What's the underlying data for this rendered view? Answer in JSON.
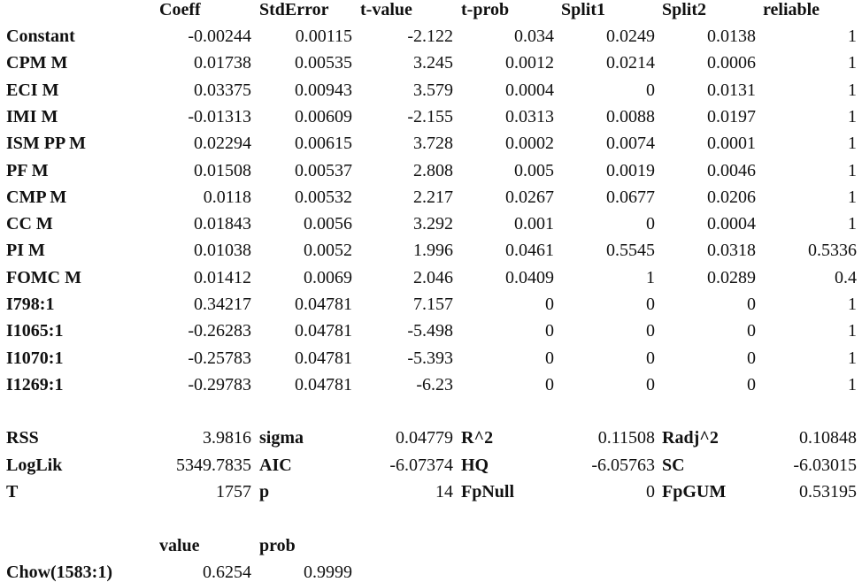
{
  "coef_table": {
    "headers": [
      "Coeff",
      "StdError",
      "t-value",
      "t-prob",
      "Split1",
      "Split2",
      "reliable"
    ],
    "rows": [
      {
        "name": "Constant",
        "values": [
          "-0.00244",
          "0.00115",
          "-2.122",
          "0.034",
          "0.0249",
          "0.0138",
          "1"
        ]
      },
      {
        "name": "CPM M",
        "values": [
          "0.01738",
          "0.00535",
          "3.245",
          "0.0012",
          "0.0214",
          "0.0006",
          "1"
        ]
      },
      {
        "name": "ECI M",
        "values": [
          "0.03375",
          "0.00943",
          "3.579",
          "0.0004",
          "0",
          "0.0131",
          "1"
        ]
      },
      {
        "name": "IMI M",
        "values": [
          "-0.01313",
          "0.00609",
          "-2.155",
          "0.0313",
          "0.0088",
          "0.0197",
          "1"
        ]
      },
      {
        "name": "ISM PP M",
        "values": [
          "0.02294",
          "0.00615",
          "3.728",
          "0.0002",
          "0.0074",
          "0.0001",
          "1"
        ]
      },
      {
        "name": "PF M",
        "values": [
          "0.01508",
          "0.00537",
          "2.808",
          "0.005",
          "0.0019",
          "0.0046",
          "1"
        ]
      },
      {
        "name": "CMP M",
        "values": [
          "0.0118",
          "0.00532",
          "2.217",
          "0.0267",
          "0.0677",
          "0.0206",
          "1"
        ]
      },
      {
        "name": "CC M",
        "values": [
          "0.01843",
          "0.0056",
          "3.292",
          "0.001",
          "0",
          "0.0004",
          "1"
        ]
      },
      {
        "name": "PI M",
        "values": [
          "0.01038",
          "0.0052",
          "1.996",
          "0.0461",
          "0.5545",
          "0.0318",
          "0.5336"
        ]
      },
      {
        "name": "FOMC M",
        "values": [
          "0.01412",
          "0.0069",
          "2.046",
          "0.0409",
          "1",
          "0.0289",
          "0.4"
        ]
      },
      {
        "name": "I798:1",
        "values": [
          "0.34217",
          "0.04781",
          "7.157",
          "0",
          "0",
          "0",
          "1"
        ]
      },
      {
        "name": "I1065:1",
        "values": [
          "-0.26283",
          "0.04781",
          "-5.498",
          "0",
          "0",
          "0",
          "1"
        ]
      },
      {
        "name": "I1070:1",
        "values": [
          "-0.25783",
          "0.04781",
          "-5.393",
          "0",
          "0",
          "0",
          "1"
        ]
      },
      {
        "name": "I1269:1",
        "values": [
          "-0.29783",
          "0.04781",
          "-6.23",
          "0",
          "0",
          "0",
          "1"
        ]
      }
    ]
  },
  "stats": [
    [
      {
        "label": "RSS",
        "value": "3.9816"
      },
      {
        "label": "sigma",
        "value": "0.04779"
      },
      {
        "label": "R^2",
        "value": "0.11508"
      },
      {
        "label": "Radj^2",
        "value": "0.10848"
      }
    ],
    [
      {
        "label": "LogLik",
        "value": "5349.7835"
      },
      {
        "label": "AIC",
        "value": "-6.07374"
      },
      {
        "label": "HQ",
        "value": "-6.05763"
      },
      {
        "label": "SC",
        "value": "-6.03015"
      }
    ],
    [
      {
        "label": "T",
        "value": "1757"
      },
      {
        "label": "p",
        "value": "14"
      },
      {
        "label": "FpNull",
        "value": "0"
      },
      {
        "label": "FpGUM",
        "value": "0.53195"
      }
    ]
  ],
  "chow": {
    "headers": [
      "value",
      "prob"
    ],
    "label": "Chow(1583:1)",
    "values": [
      "0.6254",
      "0.9999"
    ]
  }
}
